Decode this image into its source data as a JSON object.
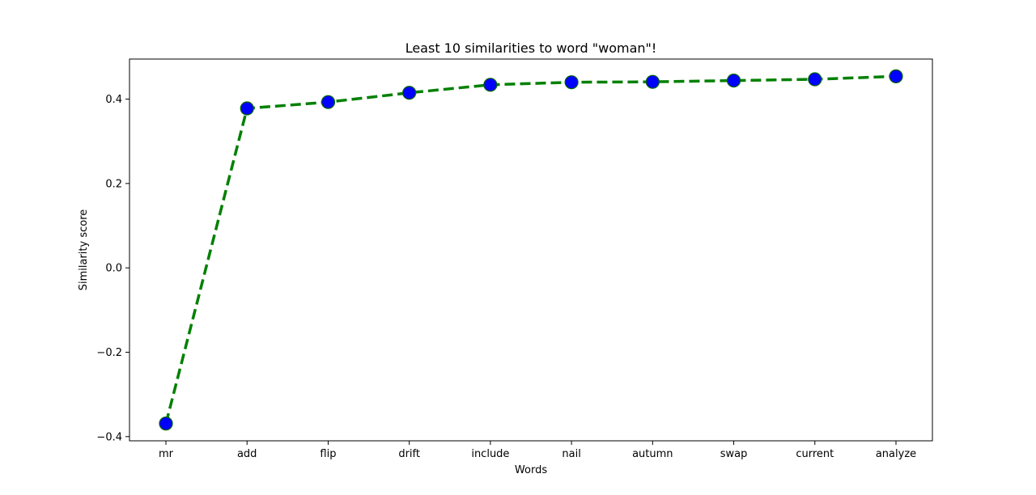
{
  "chart_data": {
    "type": "line",
    "title": "Least 10 similarities to word \"woman\"!",
    "xlabel": "Words",
    "ylabel": "Similarity score",
    "categories": [
      "mr",
      "add",
      "flip",
      "drift",
      "include",
      "nail",
      "autumn",
      "swap",
      "current",
      "analyze"
    ],
    "series": [
      {
        "values": [
          -0.369,
          0.378,
          0.393,
          0.415,
          0.434,
          0.44,
          0.441,
          0.444,
          0.447,
          0.454
        ]
      }
    ],
    "ylim": [
      -0.41,
      0.495
    ],
    "yticks": [
      -0.4,
      -0.2,
      0.0,
      0.2,
      0.4
    ],
    "ytick_labels": [
      "−0.4",
      "−0.2",
      "0.0",
      "0.2",
      "0.4"
    ],
    "grid": false,
    "line_style": "dashed",
    "line_color": "#008000",
    "marker_color": "#0000ff",
    "marker_edge_color": "#006400"
  }
}
